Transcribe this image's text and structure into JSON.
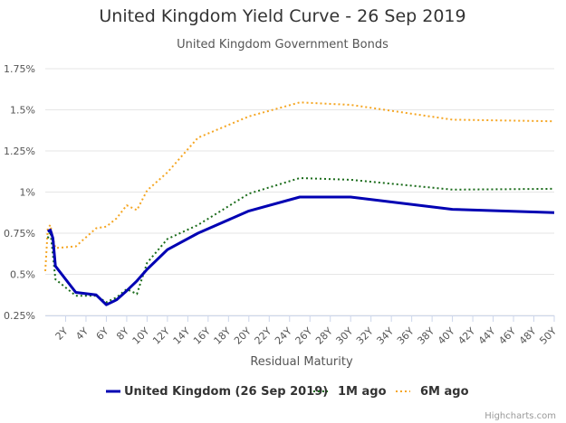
{
  "chart_data": {
    "type": "line",
    "title": "United Kingdom Yield Curve - 26 Sep 2019",
    "subtitle": "United Kingdom Government Bonds",
    "xlabel": "Residual Maturity",
    "ylabel": "",
    "xlim": [
      0,
      50
    ],
    "ylim": [
      0.25,
      1.75
    ],
    "x_ticks": [
      2,
      4,
      6,
      8,
      10,
      12,
      14,
      16,
      18,
      20,
      22,
      24,
      26,
      28,
      30,
      32,
      34,
      36,
      38,
      40,
      42,
      44,
      46,
      48,
      50
    ],
    "x_tick_labels": [
      "2Y",
      "4Y",
      "6Y",
      "8Y",
      "10Y",
      "12Y",
      "14Y",
      "16Y",
      "18Y",
      "20Y",
      "22Y",
      "24Y",
      "26Y",
      "28Y",
      "30Y",
      "32Y",
      "34Y",
      "36Y",
      "38Y",
      "40Y",
      "42Y",
      "44Y",
      "46Y",
      "48Y",
      "50Y"
    ],
    "y_ticks": [
      0.25,
      0.5,
      0.75,
      1,
      1.25,
      1.5,
      1.75
    ],
    "y_tick_labels": [
      "0.25%",
      "0.5%",
      "0.75%",
      "1%",
      "1.25%",
      "1.5%",
      "1.75%"
    ],
    "grid": "horizontal",
    "legend_position": "bottom",
    "series": [
      {
        "name": "United Kingdom (26 Sep 2019)",
        "style": "solid",
        "color": "#0000b3",
        "x": [
          0.25,
          0.5,
          0.75,
          1,
          3,
          5,
          6,
          7,
          8,
          9,
          10,
          12,
          15,
          20,
          25,
          30,
          40,
          50
        ],
        "y": [
          0.76,
          0.77,
          0.72,
          0.55,
          0.39,
          0.375,
          0.315,
          0.345,
          0.4,
          0.46,
          0.53,
          0.65,
          0.75,
          0.885,
          0.97,
          0.97,
          0.895,
          0.875
        ]
      },
      {
        "name": "1M ago",
        "style": "dotted",
        "color": "#1a6b1a",
        "x": [
          0.25,
          0.5,
          0.75,
          1,
          3,
          5,
          6,
          7,
          8,
          9,
          10,
          12,
          15,
          20,
          25,
          30,
          40,
          50
        ],
        "y": [
          0.72,
          0.76,
          0.62,
          0.47,
          0.37,
          0.37,
          0.33,
          0.36,
          0.41,
          0.38,
          0.57,
          0.715,
          0.8,
          0.99,
          1.085,
          1.075,
          1.015,
          1.02
        ]
      },
      {
        "name": "6M ago",
        "style": "dotted",
        "color": "#f5a623",
        "x": [
          0,
          0.25,
          0.5,
          0.75,
          1,
          3,
          5,
          6,
          7,
          8,
          9,
          10,
          12,
          15,
          20,
          25,
          30,
          40,
          50
        ],
        "y": [
          0.52,
          0.78,
          0.8,
          0.72,
          0.66,
          0.67,
          0.78,
          0.79,
          0.84,
          0.92,
          0.89,
          1.01,
          1.12,
          1.33,
          1.46,
          1.545,
          1.53,
          1.44,
          1.43
        ]
      }
    ],
    "credits": "Highcharts.com"
  }
}
